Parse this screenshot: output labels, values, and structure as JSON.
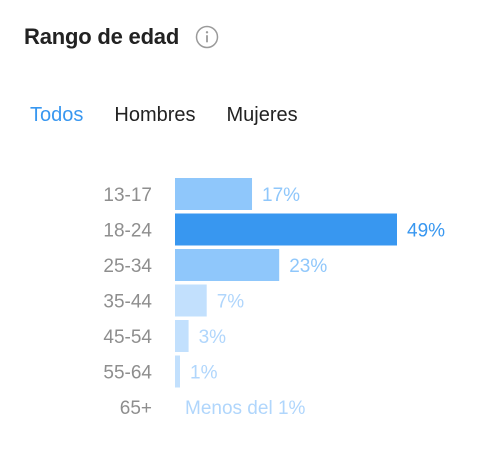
{
  "header": {
    "title": "Rango de edad",
    "info_icon": "info-icon"
  },
  "tabs": [
    {
      "label": "Todos",
      "active": true
    },
    {
      "label": "Hombres",
      "active": false
    },
    {
      "label": "Mujeres",
      "active": false
    }
  ],
  "chart_data": {
    "type": "bar",
    "orientation": "horizontal",
    "categories": [
      "13-17",
      "18-24",
      "25-34",
      "35-44",
      "45-54",
      "55-64",
      "65+"
    ],
    "values": [
      17,
      49,
      23,
      7,
      3,
      1,
      0
    ],
    "data_labels": [
      "17%",
      "49%",
      "23%",
      "7%",
      "3%",
      "1%",
      "Menos del 1%"
    ],
    "highlight_index": 1,
    "xlim": [
      0,
      49
    ],
    "grid": false,
    "colors": {
      "highlight_bar": "#3897f0",
      "highlight_label": "#3897f0",
      "medium_bar": "#8fc7fb",
      "medium_label": "#8fc7fb",
      "light_bar": "#c2e0fd",
      "light_label": "#b0d6fc",
      "category_label": "#8e8e8e"
    }
  }
}
